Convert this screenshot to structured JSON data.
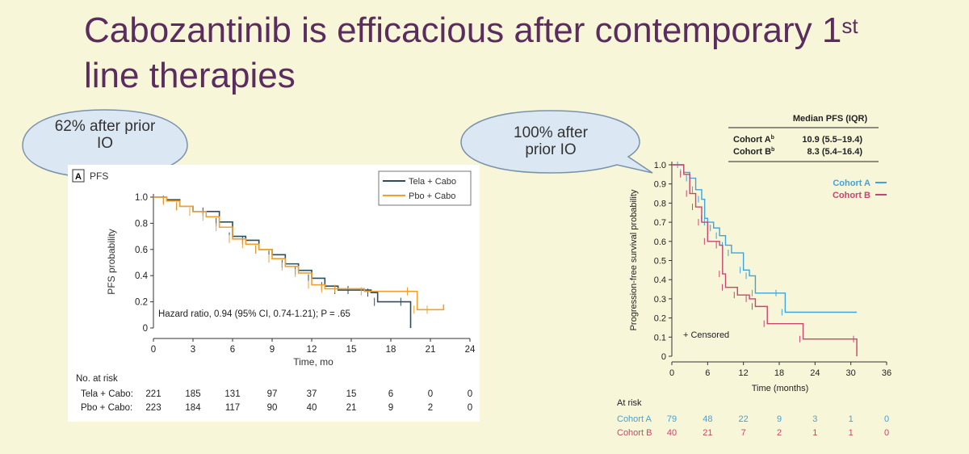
{
  "slide": {
    "title_main": "Cabozantinib is efficacious after contemporary 1",
    "title_sup": "st",
    "title_line2": "line therapies"
  },
  "callouts": {
    "left": {
      "line1": "62% after prior",
      "line2": "IO"
    },
    "right": {
      "line1": "100% after",
      "line2": "prior IO"
    }
  },
  "chart_data": [
    {
      "type": "line",
      "panel_label": "A",
      "title": "PFS",
      "xlabel": "Time, mo",
      "ylabel": "PFS probability",
      "xlim": [
        0,
        24
      ],
      "ylim": [
        0,
        1.0
      ],
      "xticks": [
        "0",
        "3",
        "6",
        "9",
        "12",
        "15",
        "18",
        "21",
        "24"
      ],
      "yticks": [
        "0",
        "0.2",
        "0.4",
        "0.6",
        "0.8",
        "1.0"
      ],
      "legend_position": "top-right",
      "annotation": "Hazard ratio, 0.94 (95% CI, 0.74-1.21); P = .65",
      "series": [
        {
          "name": "Tela + Cabo",
          "color": "#2e4e5a",
          "points": [
            [
              0,
              1.0
            ],
            [
              1,
              0.98
            ],
            [
              2,
              0.93
            ],
            [
              3,
              0.89
            ],
            [
              4,
              0.89
            ],
            [
              5,
              0.81
            ],
            [
              6,
              0.7
            ],
            [
              7,
              0.67
            ],
            [
              8,
              0.6
            ],
            [
              9,
              0.56
            ],
            [
              10,
              0.49
            ],
            [
              11,
              0.44
            ],
            [
              12,
              0.38
            ],
            [
              13,
              0.32
            ],
            [
              14,
              0.29
            ],
            [
              15,
              0.29
            ],
            [
              16.5,
              0.27
            ],
            [
              17,
              0.2
            ],
            [
              19,
              0.2
            ],
            [
              19.5,
              0.0
            ]
          ]
        },
        {
          "name": "Pbo + Cabo",
          "color": "#f0a02c",
          "points": [
            [
              0,
              1.0
            ],
            [
              1,
              0.97
            ],
            [
              2,
              0.93
            ],
            [
              3,
              0.89
            ],
            [
              4,
              0.85
            ],
            [
              5,
              0.77
            ],
            [
              6,
              0.68
            ],
            [
              7,
              0.64
            ],
            [
              8,
              0.6
            ],
            [
              9,
              0.53
            ],
            [
              10,
              0.47
            ],
            [
              11,
              0.42
            ],
            [
              12,
              0.33
            ],
            [
              13,
              0.3
            ],
            [
              14,
              0.3
            ],
            [
              16,
              0.28
            ],
            [
              19.5,
              0.28
            ],
            [
              20,
              0.14
            ],
            [
              21,
              0.14
            ],
            [
              22,
              0.18
            ]
          ]
        }
      ],
      "at_risk": {
        "header": "No. at risk",
        "rows": [
          {
            "label": "Tela + Cabo:",
            "values": [
              "221",
              "185",
              "131",
              "97",
              "37",
              "15",
              "6",
              "0",
              "0"
            ]
          },
          {
            "label": "Pbo + Cabo:",
            "values": [
              "223",
              "184",
              "117",
              "90",
              "40",
              "21",
              "9",
              "2",
              "0"
            ]
          }
        ]
      }
    },
    {
      "type": "line",
      "xlabel": "Time (months)",
      "ylabel": "Progression-free survival probability",
      "xlim": [
        0,
        36
      ],
      "ylim": [
        0,
        1.0
      ],
      "xticks": [
        "0",
        "6",
        "12",
        "18",
        "24",
        "30",
        "36"
      ],
      "yticks": [
        "0",
        "0.1",
        "0.2",
        "0.3",
        "0.4",
        "0.5",
        "0.6",
        "0.7",
        "0.8",
        "0.9",
        "1.0"
      ],
      "legend_position": "top-right",
      "annotation": "+ Censored",
      "table": {
        "header": "Median PFS (IQR)",
        "rows": [
          {
            "label": "Cohort A",
            "sup": "b",
            "value": "10.9 (5.5–19.4)"
          },
          {
            "label": "Cohort B",
            "sup": "b",
            "value": "8.3 (5.4–16.4)"
          }
        ]
      },
      "series": [
        {
          "name": "Cohort A",
          "color": "#3fa3dc",
          "points": [
            [
              0,
              1.0
            ],
            [
              1.5,
              1.0
            ],
            [
              2,
              0.96
            ],
            [
              3,
              0.93
            ],
            [
              4,
              0.87
            ],
            [
              5,
              0.82
            ],
            [
              5.5,
              0.72
            ],
            [
              6,
              0.7
            ],
            [
              7,
              0.67
            ],
            [
              8,
              0.63
            ],
            [
              9,
              0.58
            ],
            [
              10,
              0.54
            ],
            [
              12,
              0.45
            ],
            [
              13,
              0.42
            ],
            [
              14,
              0.33
            ],
            [
              18,
              0.33
            ],
            [
              19,
              0.23
            ],
            [
              31,
              0.23
            ]
          ]
        },
        {
          "name": "Cohort B",
          "color": "#c8456e",
          "points": [
            [
              0,
              1.0
            ],
            [
              2,
              0.95
            ],
            [
              3,
              0.85
            ],
            [
              4,
              0.78
            ],
            [
              5,
              0.7
            ],
            [
              6,
              0.6
            ],
            [
              8,
              0.58
            ],
            [
              8.5,
              0.43
            ],
            [
              9,
              0.36
            ],
            [
              11,
              0.32
            ],
            [
              13,
              0.3
            ],
            [
              14,
              0.26
            ],
            [
              16,
              0.17
            ],
            [
              22,
              0.09
            ],
            [
              31,
              0.09
            ],
            [
              31,
              0.0
            ]
          ]
        }
      ],
      "at_risk": {
        "header": "At risk",
        "rows": [
          {
            "label": "Cohort A",
            "color": "#3fa3dc",
            "values": [
              "79",
              "48",
              "22",
              "9",
              "3",
              "1",
              "0"
            ]
          },
          {
            "label": "Cohort B",
            "color": "#c8456e",
            "values": [
              "40",
              "21",
              "7",
              "2",
              "1",
              "1",
              "0"
            ]
          }
        ]
      }
    }
  ]
}
